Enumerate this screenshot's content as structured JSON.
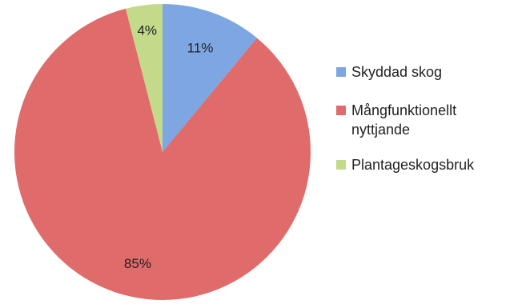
{
  "chart_data": {
    "type": "pie",
    "categories": [
      "Skyddad skog",
      "Mångfunktionellt\nnyttjande",
      "Plantageskogsbruk"
    ],
    "values": [
      11,
      85,
      4
    ],
    "data_labels": [
      "11%",
      "85%",
      "4%"
    ],
    "colors": [
      "#7da6e2",
      "#e06b6b",
      "#c3da8a"
    ],
    "start_angle_deg": 0,
    "direction": "clockwise",
    "legend_position": "right"
  },
  "legend": {
    "items": [
      {
        "label": "Skyddad skog",
        "color": "#7da6e2"
      },
      {
        "label": "Mångfunktionellt\nnyttjande",
        "color": "#e06b6b"
      },
      {
        "label": "Plantageskogsbruk",
        "color": "#c3da8a"
      }
    ]
  }
}
